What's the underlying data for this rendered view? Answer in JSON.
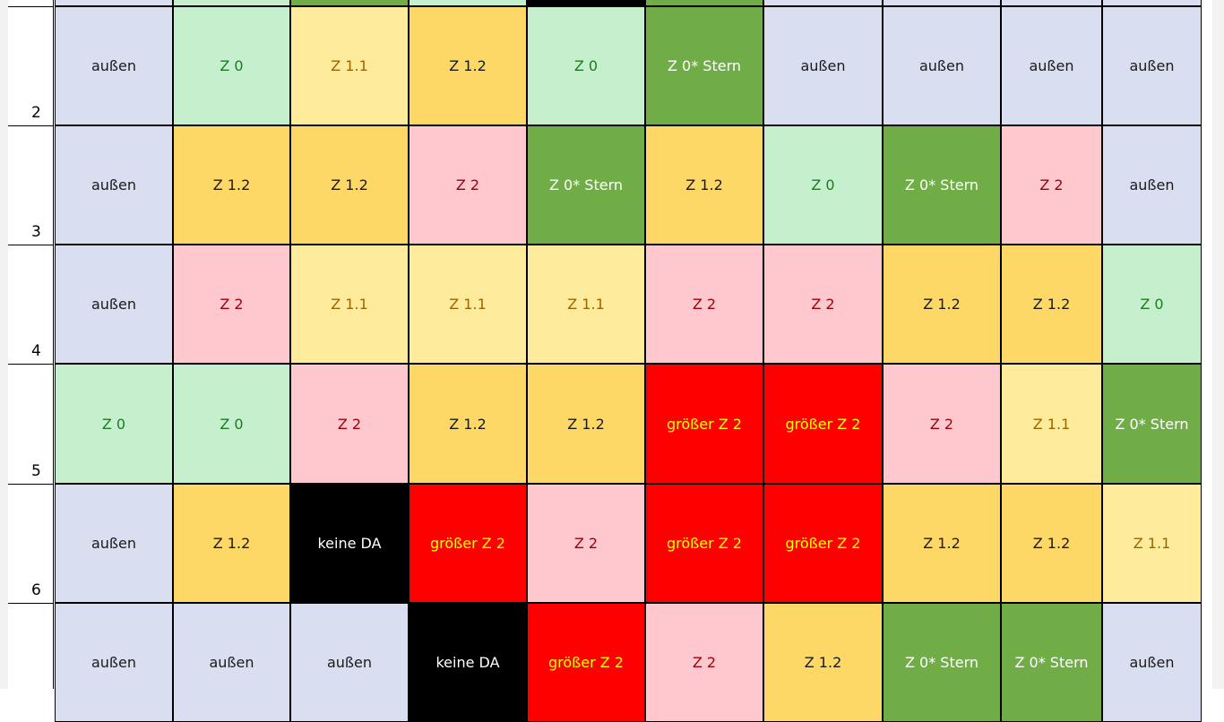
{
  "colors": {
    "aussen": "#d9dff0",
    "z0": "#c6efce",
    "z11": "#ffeb9c",
    "z12": "#fdd866",
    "z2": "#ffc7ce",
    "z0stern": "#70ad47",
    "groesser": "#ff0000",
    "keine": "#000000"
  },
  "grid": {
    "top_row_fills": [
      "aussen",
      "z0",
      "z0stern",
      "z0",
      "keine",
      "z0stern",
      "aussen",
      "aussen",
      "aussen",
      "aussen"
    ],
    "rows": [
      {
        "label": "2",
        "cells": [
          {
            "t": "außen",
            "c": "aussen"
          },
          {
            "t": "Z 0",
            "c": "z0"
          },
          {
            "t": "Z 1.1",
            "c": "z11"
          },
          {
            "t": "Z 1.2",
            "c": "z12"
          },
          {
            "t": "Z 0",
            "c": "z0"
          },
          {
            "t": "Z 0* Stern",
            "c": "z0stern"
          },
          {
            "t": "außen",
            "c": "aussen"
          },
          {
            "t": "außen",
            "c": "aussen"
          },
          {
            "t": "außen",
            "c": "aussen"
          },
          {
            "t": "außen",
            "c": "aussen"
          }
        ]
      },
      {
        "label": "3",
        "cells": [
          {
            "t": "außen",
            "c": "aussen"
          },
          {
            "t": "Z 1.2",
            "c": "z12"
          },
          {
            "t": "Z 1.2",
            "c": "z12"
          },
          {
            "t": "Z 2",
            "c": "z2"
          },
          {
            "t": "Z 0* Stern",
            "c": "z0stern"
          },
          {
            "t": "Z 1.2",
            "c": "z12"
          },
          {
            "t": "Z 0",
            "c": "z0"
          },
          {
            "t": "Z 0* Stern",
            "c": "z0stern"
          },
          {
            "t": "Z 2",
            "c": "z2"
          },
          {
            "t": "außen",
            "c": "aussen"
          }
        ]
      },
      {
        "label": "4",
        "cells": [
          {
            "t": "außen",
            "c": "aussen"
          },
          {
            "t": "Z 2",
            "c": "z2"
          },
          {
            "t": "Z 1.1",
            "c": "z11"
          },
          {
            "t": "Z 1.1",
            "c": "z11"
          },
          {
            "t": "Z 1.1",
            "c": "z11"
          },
          {
            "t": "Z 2",
            "c": "z2"
          },
          {
            "t": "Z 2",
            "c": "z2"
          },
          {
            "t": "Z 1.2",
            "c": "z12"
          },
          {
            "t": "Z 1.2",
            "c": "z12"
          },
          {
            "t": "Z 0",
            "c": "z0"
          }
        ]
      },
      {
        "label": "5",
        "cells": [
          {
            "t": "Z 0",
            "c": "z0"
          },
          {
            "t": "Z 0",
            "c": "z0"
          },
          {
            "t": "Z 2",
            "c": "z2"
          },
          {
            "t": "Z 1.2",
            "c": "z12"
          },
          {
            "t": "Z 1.2",
            "c": "z12"
          },
          {
            "t": "größer Z 2",
            "c": "groesser"
          },
          {
            "t": "größer Z 2",
            "c": "groesser"
          },
          {
            "t": "Z 2",
            "c": "z2"
          },
          {
            "t": "Z 1.1",
            "c": "z11"
          },
          {
            "t": "Z 0* Stern",
            "c": "z0stern"
          }
        ]
      },
      {
        "label": "6",
        "cells": [
          {
            "t": "außen",
            "c": "aussen"
          },
          {
            "t": "Z 1.2",
            "c": "z12"
          },
          {
            "t": "keine DA",
            "c": "keine"
          },
          {
            "t": "größer Z 2",
            "c": "groesser"
          },
          {
            "t": "Z 2",
            "c": "z2"
          },
          {
            "t": "größer Z 2",
            "c": "groesser"
          },
          {
            "t": "größer Z 2",
            "c": "groesser"
          },
          {
            "t": "Z 1.2",
            "c": "z12"
          },
          {
            "t": "Z 1.2",
            "c": "z12"
          },
          {
            "t": "Z 1.1",
            "c": "z11"
          }
        ]
      },
      {
        "label": "",
        "cells": [
          {
            "t": "außen",
            "c": "aussen"
          },
          {
            "t": "außen",
            "c": "aussen"
          },
          {
            "t": "außen",
            "c": "aussen"
          },
          {
            "t": "keine DA",
            "c": "keine"
          },
          {
            "t": "größer Z 2",
            "c": "groesser"
          },
          {
            "t": "Z 2",
            "c": "z2"
          },
          {
            "t": "Z 1.2",
            "c": "z12"
          },
          {
            "t": "Z 0* Stern",
            "c": "z0stern"
          },
          {
            "t": "Z 0* Stern",
            "c": "z0stern"
          },
          {
            "t": "außen",
            "c": "aussen"
          }
        ]
      }
    ]
  }
}
